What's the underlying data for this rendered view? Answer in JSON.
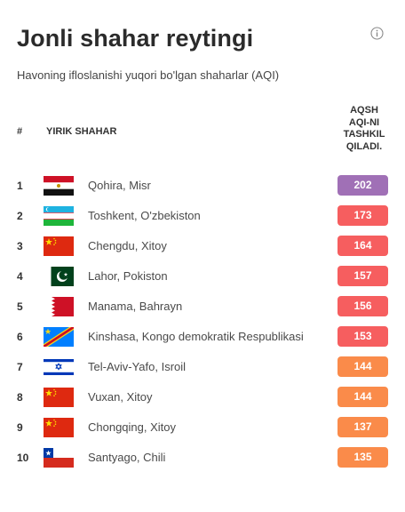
{
  "header": {
    "title": "Jonli shahar reytingi",
    "subtitle": "Havoning ifloslanishi yuqori bo'lgan shaharlar (AQI)",
    "info_icon": "info-icon"
  },
  "table": {
    "col_rank": "#",
    "col_city": "YIRIK SHAHAR",
    "col_aqi_lines": [
      "AQSH",
      "AQI-NI",
      "TASHKIL",
      "QILADI."
    ],
    "rows": [
      {
        "rank": "1",
        "city": "Qohira, Misr",
        "aqi": "202",
        "flag": "egypt-flag-icon",
        "color": "#a070b6"
      },
      {
        "rank": "2",
        "city": "Toshkent, O'zbekiston",
        "aqi": "173",
        "flag": "uzbekistan-flag-icon",
        "color": "#f65e5f"
      },
      {
        "rank": "3",
        "city": "Chengdu, Xitoy",
        "aqi": "164",
        "flag": "china-flag-icon",
        "color": "#f65e5f"
      },
      {
        "rank": "4",
        "city": "Lahor, Pokiston",
        "aqi": "157",
        "flag": "pakistan-flag-icon",
        "color": "#f65e5f"
      },
      {
        "rank": "5",
        "city": "Manama, Bahrayn",
        "aqi": "156",
        "flag": "bahrain-flag-icon",
        "color": "#f65e5f"
      },
      {
        "rank": "6",
        "city": "Kinshasa, Kongo demokratik Respublikasi",
        "aqi": "153",
        "flag": "dr-congo-flag-icon",
        "color": "#f65e5f"
      },
      {
        "rank": "7",
        "city": "Tel-Aviv-Yafo, Isroil",
        "aqi": "144",
        "flag": "israel-flag-icon",
        "color": "#fa8b4a"
      },
      {
        "rank": "8",
        "city": "Vuxan, Xitoy",
        "aqi": "144",
        "flag": "china-flag-icon",
        "color": "#fa8b4a"
      },
      {
        "rank": "9",
        "city": "Chongqing, Xitoy",
        "aqi": "137",
        "flag": "china-flag-icon",
        "color": "#fa8b4a"
      },
      {
        "rank": "10",
        "city": "Santyago, Chili",
        "aqi": "135",
        "flag": "chile-flag-icon",
        "color": "#fa8b4a"
      }
    ]
  }
}
